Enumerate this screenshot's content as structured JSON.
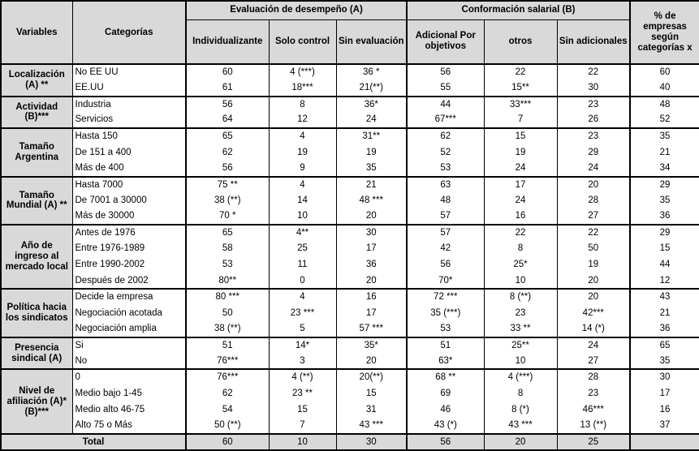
{
  "table": {
    "header": {
      "variables": "Variables",
      "categorias": "Categorías",
      "group_a": "Evaluación de desempeño (A)",
      "group_b": "Conformación salarial (B)",
      "pct": "% de empresas según categorías x",
      "sub_a": [
        "Individualizante",
        "Solo control",
        "Sin evaluación"
      ],
      "sub_b": [
        "Adicional Por objetivos",
        "otros",
        "Sin adicionales"
      ]
    },
    "groups": [
      {
        "variable": "Localización (A) **",
        "rows": [
          {
            "category": "No EE UU",
            "values": [
              "60",
              "4 (***)",
              "36 *",
              "56",
              "22",
              "22",
              "60"
            ]
          },
          {
            "category": "EE.UU",
            "values": [
              "61",
              "18***",
              "21(**)",
              "55",
              "15**",
              "30",
              "40"
            ]
          }
        ]
      },
      {
        "variable": "Actividad (B)***",
        "rows": [
          {
            "category": "Industria",
            "values": [
              "56",
              "8",
              "36*",
              "44",
              "33***",
              "23",
              "48"
            ]
          },
          {
            "category": "Servicios",
            "values": [
              "64",
              "12",
              "24",
              "67***",
              "7",
              "26",
              "52"
            ]
          }
        ]
      },
      {
        "variable": "Tamaño Argentina",
        "rows": [
          {
            "category": "Hasta 150",
            "values": [
              "65",
              "4",
              "31**",
              "62",
              "15",
              "23",
              "35"
            ]
          },
          {
            "category": "De 151 a 400",
            "values": [
              "62",
              "19",
              "19",
              "52",
              "19",
              "29",
              "21"
            ]
          },
          {
            "category": "Más de 400",
            "values": [
              "56",
              "9",
              "35",
              "53",
              "24",
              "24",
              "34"
            ]
          }
        ]
      },
      {
        "variable": "Tamaño Mundial (A) **",
        "rows": [
          {
            "category": "Hasta 7000",
            "values": [
              "75 **",
              "4",
              "21",
              "63",
              "17",
              "20",
              "29"
            ]
          },
          {
            "category": "De 7001 a 30000",
            "values": [
              "38 (**)",
              "14",
              "48 ***",
              "48",
              "24",
              "28",
              "35"
            ]
          },
          {
            "category": "Más de 30000",
            "values": [
              "70 *",
              "10",
              "20",
              "57",
              "16",
              "27",
              "36"
            ]
          }
        ]
      },
      {
        "variable": "Año de ingreso al mercado local",
        "rows": [
          {
            "category": "Antes de 1976",
            "values": [
              "65",
              "4**",
              "30",
              "57",
              "22",
              "22",
              "29"
            ]
          },
          {
            "category": "Entre 1976-1989",
            "values": [
              "58",
              "25",
              "17",
              "42",
              "8",
              "50",
              "15"
            ]
          },
          {
            "category": "Entre 1990-2002",
            "values": [
              "53",
              "11",
              "36",
              "56",
              "25*",
              "19",
              "44"
            ]
          },
          {
            "category": "Después de 2002",
            "values": [
              "80**",
              "0",
              "20",
              "70*",
              "10",
              "20",
              "12"
            ]
          }
        ]
      },
      {
        "variable": "Política hacia los sindicatos",
        "rows": [
          {
            "category": "Decide la empresa",
            "values": [
              "80 ***",
              "4",
              "16",
              "72 ***",
              "8 (**)",
              "20",
              "43"
            ]
          },
          {
            "category": "Negociación acotada",
            "values": [
              "50",
              "23 ***",
              "17",
              "35 (***)",
              "23",
              "42***",
              "21"
            ]
          },
          {
            "category": "Negociación amplia",
            "values": [
              "38 (**)",
              "5",
              "57 ***",
              "53",
              "33 **",
              "14 (*)",
              "36"
            ]
          }
        ]
      },
      {
        "variable": "Presencia sindical (A)",
        "rows": [
          {
            "category": "Si",
            "values": [
              "51",
              "14*",
              "35*",
              "51",
              "25**",
              "24",
              "65"
            ]
          },
          {
            "category": "No",
            "values": [
              "76***",
              "3",
              "20",
              "63*",
              "10",
              "27",
              "35"
            ]
          }
        ]
      },
      {
        "variable": "Nivel de afiliación (A)* (B)***",
        "rows": [
          {
            "category": "0",
            "values": [
              "76***",
              "4 (**)",
              "20(**)",
              "68 **",
              "4 (***)",
              "28",
              "30"
            ]
          },
          {
            "category": "Medio bajo 1-45",
            "values": [
              "62",
              "23 **",
              "15",
              "69",
              "8",
              "23",
              "17"
            ]
          },
          {
            "category": "Medio alto 46-75",
            "values": [
              "54",
              "15",
              "31",
              "46",
              "8 (*)",
              "46***",
              "16"
            ]
          },
          {
            "category": "Alto 75 o Más",
            "values": [
              "50 (**)",
              "7",
              "43 ***",
              "43 (*)",
              "43 ***",
              "13 (**)",
              "37"
            ]
          }
        ]
      }
    ],
    "total": {
      "label": "Total",
      "values": [
        "60",
        "10",
        "30",
        "56",
        "20",
        "25",
        ""
      ]
    }
  },
  "colors": {
    "header_bg": "#d9d9d9",
    "border": "#000000",
    "cell_bg": "#ffffff"
  }
}
